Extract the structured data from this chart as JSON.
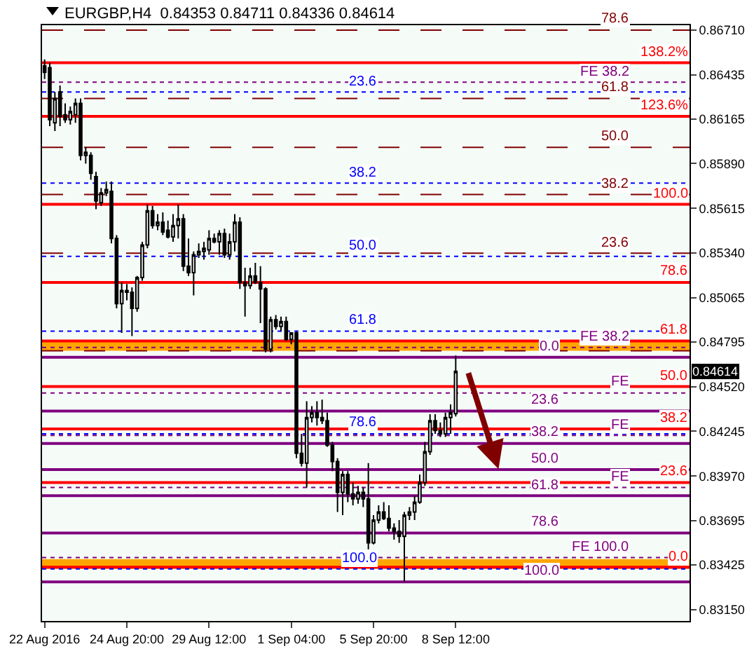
{
  "chart_data": {
    "type": "candlestick",
    "title": "EURGBP,H4  0.84353 0.84711 0.84336 0.84614",
    "categories": [
      "22 Aug 2016",
      null,
      null,
      null,
      null,
      null,
      null,
      null,
      null,
      null,
      null,
      null,
      null,
      null,
      null,
      null,
      "24 Aug 20:00",
      null,
      null,
      null,
      null,
      null,
      null,
      null,
      null,
      null,
      null,
      null,
      null,
      null,
      null,
      null,
      "29 Aug 12:00",
      null,
      null,
      null,
      null,
      null,
      null,
      null,
      null,
      null,
      null,
      null,
      null,
      null,
      null,
      null,
      "1 Sep 04:00",
      null,
      null,
      null,
      null,
      null,
      null,
      null,
      null,
      null,
      null,
      null,
      null,
      null,
      null,
      null,
      "5 Sep 20:00",
      null,
      null,
      null,
      null,
      null,
      null,
      null,
      null,
      null,
      null,
      null,
      null,
      null,
      null,
      null,
      "8 Sep 12:00",
      null,
      null,
      null,
      null,
      null,
      null,
      null,
      null,
      null,
      null,
      null,
      null,
      null,
      null,
      null,
      null,
      null,
      null,
      null,
      null,
      null,
      null,
      null,
      null,
      null,
      null,
      null,
      null,
      null,
      null,
      null,
      null,
      null,
      null,
      null,
      null,
      null,
      null,
      null,
      null,
      null,
      null,
      null,
      null,
      null
    ],
    "ohlc": [
      [
        0.8649,
        0.8653,
        0.8641,
        0.8645
      ],
      [
        0.8648,
        0.8651,
        0.8612,
        0.8616
      ],
      [
        0.8614,
        0.8633,
        0.8609,
        0.8629
      ],
      [
        0.8633,
        0.8637,
        0.8612,
        0.8618
      ],
      [
        0.8619,
        0.8626,
        0.8614,
        0.8616
      ],
      [
        0.8616,
        0.8624,
        0.8613,
        0.8621
      ],
      [
        0.8619,
        0.8629,
        0.8614,
        0.8626
      ],
      [
        0.8626,
        0.8629,
        0.8591,
        0.8594
      ],
      [
        0.8594,
        0.8599,
        0.8589,
        0.8596
      ],
      [
        0.8594,
        0.8596,
        0.8579,
        0.8583
      ],
      [
        0.8581,
        0.8584,
        0.8561,
        0.8566
      ],
      [
        0.8565,
        0.8574,
        0.8563,
        0.8571
      ],
      [
        0.8571,
        0.8578,
        0.8569,
        0.8573
      ],
      [
        0.8572,
        0.8578,
        0.854,
        0.8543
      ],
      [
        0.8543,
        0.8545,
        0.85,
        0.8503
      ],
      [
        0.8503,
        0.8516,
        0.8485,
        0.8511
      ],
      [
        0.8511,
        0.8515,
        0.8505,
        0.851
      ],
      [
        0.851,
        0.8513,
        0.8483,
        0.85
      ],
      [
        0.85,
        0.852,
        0.8498,
        0.8519
      ],
      [
        0.8519,
        0.8541,
        0.8517,
        0.8539
      ],
      [
        0.8539,
        0.8564,
        0.8537,
        0.856
      ],
      [
        0.856,
        0.8563,
        0.8549,
        0.8551
      ],
      [
        0.8551,
        0.8558,
        0.8548,
        0.8553
      ],
      [
        0.8553,
        0.8559,
        0.8545,
        0.8547
      ],
      [
        0.8548,
        0.8554,
        0.8543,
        0.8544
      ],
      [
        0.8544,
        0.8558,
        0.8541,
        0.8551
      ],
      [
        0.8551,
        0.8564,
        0.8543,
        0.8555
      ],
      [
        0.8555,
        0.8558,
        0.8523,
        0.8526
      ],
      [
        0.8526,
        0.8543,
        0.852,
        0.8522
      ],
      [
        0.8522,
        0.8535,
        0.8508,
        0.8533
      ],
      [
        0.8533,
        0.854,
        0.8531,
        0.8535
      ],
      [
        0.8535,
        0.8541,
        0.853,
        0.8537
      ],
      [
        0.8536,
        0.8548,
        0.8533,
        0.8543
      ],
      [
        0.8543,
        0.8546,
        0.854,
        0.8541
      ],
      [
        0.8541,
        0.8548,
        0.8533,
        0.8546
      ],
      [
        0.8546,
        0.8549,
        0.8531,
        0.8533
      ],
      [
        0.8533,
        0.8546,
        0.853,
        0.8541
      ],
      [
        0.8541,
        0.8558,
        0.8535,
        0.8553
      ],
      [
        0.8553,
        0.8556,
        0.8512,
        0.8516
      ],
      [
        0.8516,
        0.8525,
        0.8495,
        0.8514
      ],
      [
        0.8514,
        0.8525,
        0.8512,
        0.852
      ],
      [
        0.852,
        0.8528,
        0.8515,
        0.8516
      ],
      [
        0.8516,
        0.8526,
        0.8491,
        0.8512
      ],
      [
        0.8512,
        0.8513,
        0.8473,
        0.8475
      ],
      [
        0.8475,
        0.8495,
        0.8473,
        0.8493
      ],
      [
        0.8493,
        0.8496,
        0.8487,
        0.8489
      ],
      [
        0.8489,
        0.8495,
        0.8486,
        0.8492
      ],
      [
        0.8492,
        0.8495,
        0.848,
        0.8481
      ],
      [
        0.8481,
        0.8485,
        0.8478,
        0.8485
      ],
      [
        0.8485,
        0.8486,
        0.8408,
        0.8411
      ],
      [
        0.8411,
        0.8423,
        0.8403,
        0.8405
      ],
      [
        0.8405,
        0.8443,
        0.839,
        0.8433
      ],
      [
        0.8433,
        0.844,
        0.843,
        0.8436
      ],
      [
        0.8436,
        0.8443,
        0.8428,
        0.8433
      ],
      [
        0.8433,
        0.8444,
        0.8429,
        0.8431
      ],
      [
        0.8431,
        0.8436,
        0.8415,
        0.8416
      ],
      [
        0.8416,
        0.8418,
        0.84,
        0.8406
      ],
      [
        0.8406,
        0.8408,
        0.8375,
        0.8387
      ],
      [
        0.8387,
        0.84,
        0.8373,
        0.8398
      ],
      [
        0.8398,
        0.84,
        0.8381,
        0.8386
      ],
      [
        0.8386,
        0.8393,
        0.8379,
        0.8383
      ],
      [
        0.8383,
        0.8391,
        0.838,
        0.8387
      ],
      [
        0.8387,
        0.839,
        0.8378,
        0.8383
      ],
      [
        0.8383,
        0.8405,
        0.8352,
        0.8356
      ],
      [
        0.8356,
        0.8373,
        0.8355,
        0.837
      ],
      [
        0.837,
        0.8379,
        0.8368,
        0.8375
      ],
      [
        0.8375,
        0.8381,
        0.837,
        0.8371
      ],
      [
        0.8371,
        0.8379,
        0.8363,
        0.8365
      ],
      [
        0.8365,
        0.8368,
        0.8358,
        0.8363
      ],
      [
        0.8363,
        0.837,
        0.8356,
        0.836
      ],
      [
        0.836,
        0.8375,
        0.8332,
        0.8373
      ],
      [
        0.8373,
        0.8378,
        0.837,
        0.8375
      ],
      [
        0.8375,
        0.8385,
        0.837,
        0.8381
      ],
      [
        0.8381,
        0.8398,
        0.838,
        0.8393
      ],
      [
        0.8393,
        0.8418,
        0.8391,
        0.8412
      ],
      [
        0.8412,
        0.8435,
        0.841,
        0.8431
      ],
      [
        0.8431,
        0.8435,
        0.8423,
        0.8425
      ],
      [
        0.8425,
        0.843,
        0.8421,
        0.8423
      ],
      [
        0.8423,
        0.8436,
        0.8421,
        0.8433
      ],
      [
        0.8433,
        0.8441,
        0.8423,
        0.8436
      ],
      [
        0.84353,
        0.84711,
        0.84336,
        0.84614
      ],
      null,
      null,
      null,
      null,
      null,
      null,
      null,
      null,
      null,
      null,
      null,
      null,
      null,
      null,
      null,
      null,
      null,
      null,
      null,
      null,
      null,
      null,
      null,
      null,
      null,
      null,
      null,
      null,
      null,
      null,
      null,
      null,
      null,
      null,
      null,
      null,
      null,
      null,
      null,
      null,
      null,
      null,
      null,
      null,
      null
    ],
    "ylim": [
      0.8308,
      0.8674
    ],
    "yticks": [
      {
        "value": 0.8671,
        "label": "0.86710"
      },
      0.86435,
      0.86165,
      {
        "value": 0.8589,
        "label": "0.85890"
      },
      0.85615,
      {
        "value": 0.8534,
        "label": "0.85340"
      },
      0.85065,
      0.84795,
      {
        "value": 0.8452,
        "label": "0.84520"
      },
      0.84245,
      {
        "value": 0.8397,
        "label": "0.83970"
      },
      0.83695,
      0.83425,
      {
        "value": 0.8315,
        "label": "0.83150"
      }
    ],
    "ref_lines": [
      {
        "axis": "y",
        "value": 0.8671,
        "color": "#800000",
        "line_style": "dashed"
      },
      {
        "axis": "y",
        "value": 0.8629,
        "color": "#800000",
        "line_style": "dashed"
      },
      {
        "axis": "y",
        "value": 0.8599,
        "color": "#800000",
        "line_style": "dashed"
      },
      {
        "axis": "y",
        "value": 0.857,
        "color": "#800000",
        "line_style": "dashed"
      },
      {
        "axis": "y",
        "value": 0.8534,
        "color": "#800000",
        "line_style": "dashed"
      },
      {
        "axis": "y",
        "value": 0.8474,
        "color": "#800000",
        "line_style": "dashed"
      },
      {
        "axis": "y",
        "value": 0.8651,
        "color": "#ff0000",
        "line_style": "solid"
      },
      {
        "axis": "y",
        "value": 0.8618,
        "color": "#ff0000",
        "line_style": "solid"
      },
      {
        "axis": "y",
        "value": 0.8564,
        "color": "#ff0000",
        "line_style": "solid"
      },
      {
        "axis": "y",
        "value": 0.8516,
        "color": "#ff0000",
        "line_style": "solid"
      },
      {
        "axis": "y",
        "value": 0.848,
        "color": "#ff0000",
        "line_style": "solid"
      },
      {
        "axis": "y",
        "value": 0.8452,
        "color": "#ff0000",
        "line_style": "solid"
      },
      {
        "axis": "y",
        "value": 0.8426,
        "color": "#ff0000",
        "line_style": "solid"
      },
      {
        "axis": "y",
        "value": 0.8393,
        "color": "#ff0000",
        "line_style": "solid"
      },
      {
        "axis": "y",
        "value": 0.8341,
        "color": "#ff0000",
        "line_style": "solid"
      },
      {
        "axis": "y",
        "value": 0.8633,
        "color": "#0000ff",
        "line_style": "dotted"
      },
      {
        "axis": "y",
        "value": 0.8577,
        "color": "#0000ff",
        "line_style": "dotted"
      },
      {
        "axis": "y",
        "value": 0.8532,
        "color": "#0000ff",
        "line_style": "dotted"
      },
      {
        "axis": "y",
        "value": 0.8486,
        "color": "#0000ff",
        "line_style": "dotted"
      },
      {
        "axis": "y",
        "value": 0.8423,
        "color": "#0000ff",
        "line_style": "dotted"
      },
      {
        "axis": "y",
        "value": 0.834,
        "color": "#0000ff",
        "line_style": "dotted"
      },
      {
        "axis": "y",
        "value": 0.8639,
        "color": "#800080",
        "line_style": "dotted"
      },
      {
        "axis": "y",
        "value": 0.8476,
        "color": "#800080",
        "line_style": "dotted"
      },
      {
        "axis": "y",
        "value": 0.8448,
        "color": "#800080",
        "line_style": "dotted"
      },
      {
        "axis": "y",
        "value": 0.8422,
        "color": "#800080",
        "line_style": "dotted"
      },
      {
        "axis": "y",
        "value": 0.839,
        "color": "#800080",
        "line_style": "dotted"
      },
      {
        "axis": "y",
        "value": 0.8347,
        "color": "#800080",
        "line_style": "dotted"
      },
      {
        "axis": "y",
        "value": 0.847,
        "color": "#7f007f",
        "line_style": "solid"
      },
      {
        "axis": "y",
        "value": 0.8437,
        "color": "#7f007f",
        "line_style": "solid"
      },
      {
        "axis": "y",
        "value": 0.8417,
        "color": "#7f007f",
        "line_style": "solid"
      },
      {
        "axis": "y",
        "value": 0.8401,
        "color": "#7f007f",
        "line_style": "solid"
      },
      {
        "axis": "y",
        "value": 0.8385,
        "color": "#7f007f",
        "line_style": "solid"
      },
      {
        "axis": "y",
        "value": 0.8362,
        "color": "#7f007f",
        "line_style": "solid"
      },
      {
        "axis": "y",
        "value": 0.8332,
        "color": "#7f007f",
        "line_style": "solid"
      }
    ],
    "bands": [
      {
        "axis": "y",
        "from": 0.8474,
        "to": 0.848,
        "color": "#ffa500"
      },
      {
        "axis": "y",
        "from": 0.834,
        "to": 0.8346,
        "color": "#ffa500"
      }
    ],
    "annotations": [
      {
        "text": "78.6",
        "y": 0.8671
      },
      {
        "text": "61.8",
        "y": 0.8629
      },
      {
        "text": "50.0",
        "y": 0.8599
      },
      {
        "text": "38.2",
        "y": 0.857
      },
      {
        "text": "23.6",
        "y": 0.8534
      },
      {
        "text": "138.2%",
        "y": 0.8651
      },
      {
        "text": "123.6%",
        "y": 0.8618
      },
      {
        "text": "100.0",
        "y": 0.8564
      },
      {
        "text": "78.6",
        "y": 0.8516
      },
      {
        "text": "61.8",
        "y": 0.848
      },
      {
        "text": "50.0",
        "y": 0.8452
      },
      {
        "text": "38.2",
        "y": 0.8426
      },
      {
        "text": "23.6",
        "y": 0.8393
      },
      {
        "text": "0.0",
        "y": 0.8341
      },
      {
        "text": "23.6",
        "y": 0.8633
      },
      {
        "text": "38.2",
        "y": 0.8577
      },
      {
        "text": "50.0",
        "y": 0.8532
      },
      {
        "text": "61.8",
        "y": 0.8486
      },
      {
        "text": "78.6",
        "y": 0.8423
      },
      {
        "text": "100.0",
        "y": 0.834
      },
      {
        "text": "FE 38.2",
        "y": 0.8639
      },
      {
        "text": "FE 38.2",
        "y": 0.8476
      },
      {
        "text": "FE",
        "y": 0.8448
      },
      {
        "text": "FE",
        "y": 0.8422
      },
      {
        "text": "FE",
        "y": 0.839
      },
      {
        "text": "FE 100.0",
        "y": 0.8347
      },
      {
        "text": "0.0",
        "y": 0.847
      },
      {
        "text": "23.6",
        "y": 0.8437
      },
      {
        "text": "38.2",
        "y": 0.8417
      },
      {
        "text": "50.0",
        "y": 0.8401
      },
      {
        "text": "61.8",
        "y": 0.8385
      },
      {
        "text": "78.6",
        "y": 0.8362
      },
      {
        "text": "100.0",
        "y": 0.8332
      },
      {
        "text": "0.84614",
        "y": 0.84614
      }
    ]
  }
}
